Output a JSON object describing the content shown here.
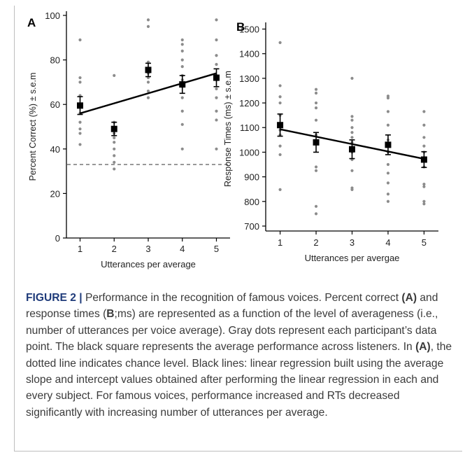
{
  "chart_data": [
    {
      "type": "scatter",
      "panel_label": "A",
      "xlabel": "Utterances per average",
      "ylabel": "Percent Correct (%) ± s.e.m",
      "xlim": [
        0.6,
        5.4
      ],
      "ylim": [
        0,
        100
      ],
      "x_ticks": [
        1,
        2,
        3,
        4,
        5
      ],
      "y_ticks": [
        0,
        20,
        40,
        60,
        80,
        100
      ],
      "dot_color": "#8c8c8c",
      "mean_color": "#000000",
      "participants": [
        {
          "x": 1,
          "y": [
            89,
            72,
            70,
            64,
            60,
            56,
            52,
            49,
            47,
            42
          ]
        },
        {
          "x": 2,
          "y": [
            73,
            52,
            49,
            47,
            45,
            43,
            40,
            37,
            34,
            31
          ]
        },
        {
          "x": 3,
          "y": [
            98,
            95,
            79,
            76,
            75,
            74,
            72,
            70,
            66,
            63
          ]
        },
        {
          "x": 4,
          "y": [
            89,
            87,
            84,
            80,
            77,
            73,
            71,
            68,
            63,
            57,
            51,
            40
          ]
        },
        {
          "x": 5,
          "y": [
            98,
            89,
            82,
            78,
            73,
            71,
            67,
            63,
            57,
            53,
            40
          ]
        }
      ],
      "means": [
        {
          "x": 1,
          "y": 59.5,
          "sem": 4
        },
        {
          "x": 2,
          "y": 49,
          "sem": 3
        },
        {
          "x": 3,
          "y": 75.5,
          "sem": 3
        },
        {
          "x": 4,
          "y": 69,
          "sem": 4
        },
        {
          "x": 5,
          "y": 72,
          "sem": 4
        }
      ],
      "regression": {
        "x": [
          1,
          5
        ],
        "y": [
          56,
          74
        ]
      },
      "chance_level": 33
    },
    {
      "type": "scatter",
      "panel_label": "B",
      "xlabel": "Utterances per avergae",
      "ylabel": "Response Times (ms) ± s.e.m",
      "xlim": [
        0.6,
        5.4
      ],
      "ylim": [
        680,
        1510
      ],
      "x_ticks": [
        1,
        2,
        3,
        4,
        5
      ],
      "y_ticks": [
        700,
        800,
        900,
        1000,
        1100,
        1200,
        1300,
        1400,
        1500
      ],
      "dot_color": "#8c8c8c",
      "mean_color": "#000000",
      "participants": [
        {
          "x": 1,
          "y": [
            1445,
            1270,
            1225,
            1200,
            1150,
            1115,
            1090,
            1070,
            1025,
            990,
            848
          ]
        },
        {
          "x": 2,
          "y": [
            1255,
            1240,
            1200,
            1180,
            1130,
            1070,
            1040,
            940,
            925,
            780,
            750
          ]
        },
        {
          "x": 3,
          "y": [
            1300,
            1145,
            1130,
            1100,
            1080,
            1060,
            1040,
            1020,
            1000,
            970,
            925,
            855,
            848
          ]
        },
        {
          "x": 4,
          "y": [
            1228,
            1220,
            1165,
            1110,
            1050,
            1000,
            950,
            915,
            875,
            830,
            800
          ]
        },
        {
          "x": 5,
          "y": [
            1165,
            1110,
            1060,
            1025,
            1000,
            970,
            940,
            870,
            860,
            800,
            790
          ]
        }
      ],
      "means": [
        {
          "x": 1,
          "y": 1110,
          "sem": 45
        },
        {
          "x": 2,
          "y": 1040,
          "sem": 40
        },
        {
          "x": 3,
          "y": 1012,
          "sem": 38
        },
        {
          "x": 4,
          "y": 1030,
          "sem": 40
        },
        {
          "x": 5,
          "y": 970,
          "sem": 32
        }
      ],
      "regression": {
        "x": [
          1,
          5
        ],
        "y": [
          1093,
          973
        ]
      }
    }
  ],
  "caption": {
    "figure_label": "FIGURE 2 |",
    "t1": " Performance in the recognition of famous voices.  Percent correct ",
    "ref_a": "(A)",
    "t2": " and response times (",
    "ref_b": "B",
    "t3": ";ms) are represented as a function of the level of averageness (i.e., number of utterances per voice average). Gray dots represent each participant’s data point. The black square represents the average performance across listeners. In ",
    "ref_a2": "(A)",
    "t4": ", the dotted line indicates chance level. Black lines: linear regression built using the average slope and intercept values obtained after performing the linear regression in each and every subject. For famous voices, performance increased and RTs decreased significantly with increasing number of utterances per average."
  }
}
